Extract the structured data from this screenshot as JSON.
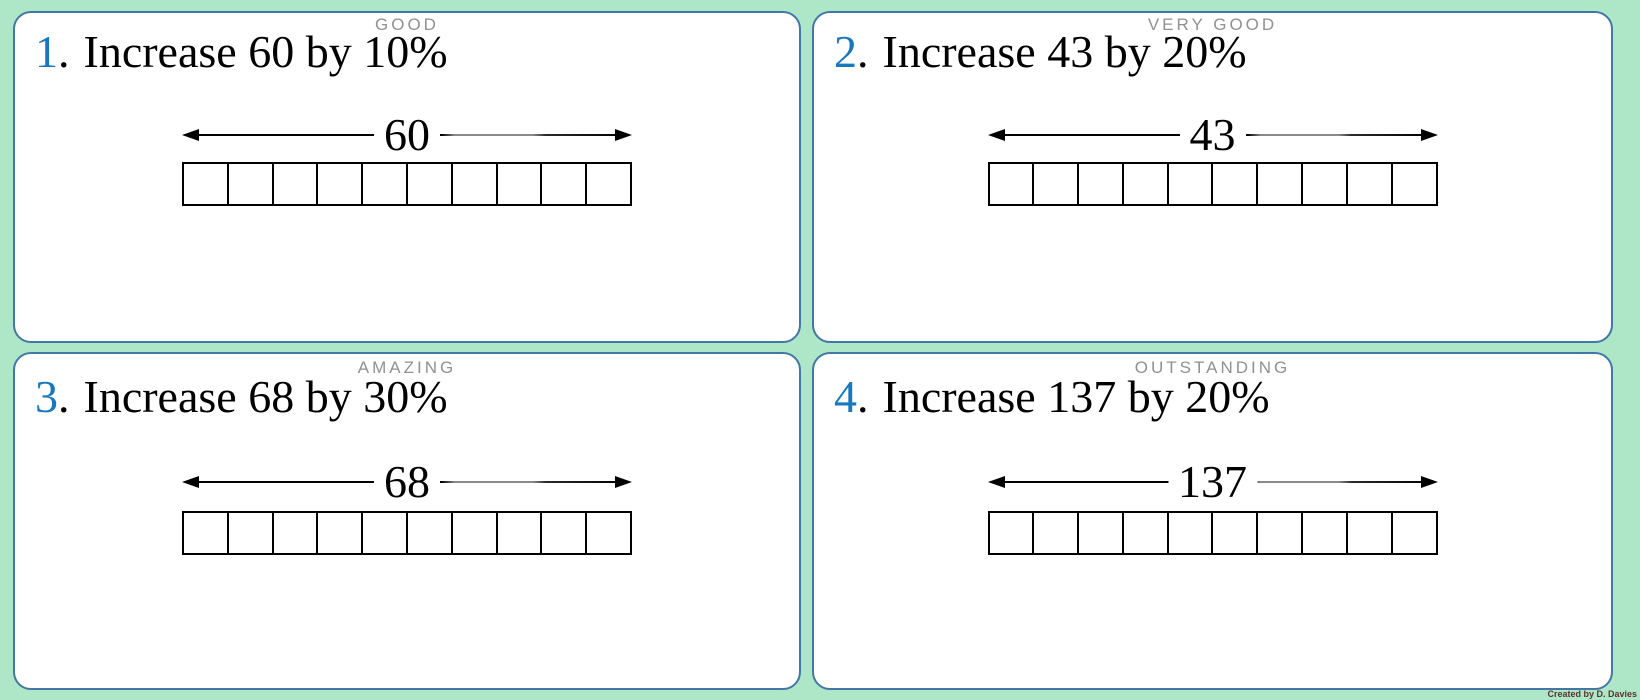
{
  "page": {
    "background_color": "#aee6c8",
    "card_border_color": "#4377a5",
    "footer_credit": "Created by D. Davies"
  },
  "shared": {
    "question_dot": "."
  },
  "colors": {
    "question_number_blue": "#1878be",
    "award_label_gray": "#919191",
    "bar_line_black": "#000000",
    "footer_text_color": "#5c352b"
  },
  "cards": [
    {
      "award_label": "GOOD",
      "question_number": "1",
      "question_text": "Increase 60 by 10%",
      "bar_total_label": "60",
      "bar_cell_count": 10
    },
    {
      "award_label": "VERY GOOD",
      "question_number": "2",
      "question_text": "Increase 43 by 20%",
      "bar_total_label": "43",
      "bar_cell_count": 10
    },
    {
      "award_label": "AMAZING",
      "question_number": "3",
      "question_text": "Increase 68 by 30%",
      "bar_total_label": "68",
      "bar_cell_count": 10
    },
    {
      "award_label": "OUTSTANDING",
      "question_number": "4",
      "question_text": "Increase 137 by 20%",
      "bar_total_label": "137",
      "bar_cell_count": 10
    }
  ]
}
